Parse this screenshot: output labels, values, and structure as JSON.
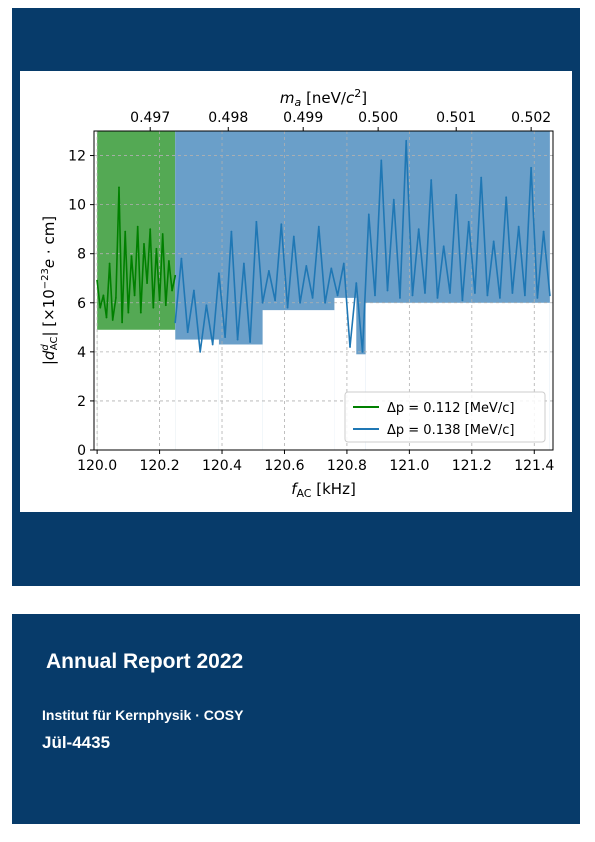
{
  "cover": {
    "title": "Annual Report 2022",
    "institute": "Institut für Kernphysik · COSY",
    "report_number": "Jül-4435"
  },
  "colors": {
    "panel": "#073b6a",
    "series_green": "#008000",
    "series_blue": "#1f77b4",
    "region_green": "#54a954",
    "region_blue": "#6a9fc9"
  },
  "chart_data": {
    "type": "line",
    "xlabel": "f_AC [kHz]",
    "ylabel": "|d^d_AC| [×10^-23 e · cm]",
    "top_axis_label": "m_a [neV/c^2]",
    "xlim": [
      119.99,
      121.46
    ],
    "ylim": [
      0,
      13
    ],
    "grid": true,
    "legend_position": "lower-right",
    "x_ticks": [
      120.0,
      120.2,
      120.4,
      120.6,
      120.8,
      121.0,
      121.2,
      121.4
    ],
    "x_tick_labels": [
      "120.0",
      "120.2",
      "120.4",
      "120.6",
      "120.8",
      "121.0",
      "121.2",
      "121.4"
    ],
    "y_ticks": [
      0,
      2,
      4,
      6,
      8,
      10,
      12
    ],
    "y_tick_labels": [
      "0",
      "2",
      "4",
      "6",
      "8",
      "10",
      "12"
    ],
    "top_ticks_x": [
      120.17,
      120.42,
      120.66,
      120.9,
      121.15,
      121.39
    ],
    "top_tick_labels": [
      "0.497",
      "0.498",
      "0.499",
      "0.500",
      "0.501",
      "0.502"
    ],
    "series": [
      {
        "name": "Δp = 0.112 [MeV/c]",
        "color": "#008000",
        "x": [
          120.0,
          120.01,
          120.02,
          120.03,
          120.04,
          120.05,
          120.06,
          120.07,
          120.08,
          120.09,
          120.1,
          120.11,
          120.12,
          120.13,
          120.14,
          120.15,
          120.16,
          120.17,
          120.18,
          120.19,
          120.2,
          120.21,
          120.22,
          120.23,
          120.24,
          120.25
        ],
        "y": [
          6.9,
          5.8,
          6.3,
          5.4,
          7.6,
          5.3,
          6.2,
          10.7,
          5.2,
          8.9,
          5.6,
          7.9,
          6.3,
          9.1,
          5.6,
          8.4,
          6.8,
          9.0,
          5.8,
          8.2,
          6.1,
          8.8,
          5.9,
          7.7,
          6.5,
          7.1
        ]
      },
      {
        "name": "Δp = 0.138 [MeV/c]",
        "color": "#1f77b4",
        "x": [
          120.25,
          120.27,
          120.29,
          120.31,
          120.33,
          120.35,
          120.37,
          120.39,
          120.41,
          120.43,
          120.45,
          120.47,
          120.49,
          120.51,
          120.53,
          120.55,
          120.57,
          120.59,
          120.61,
          120.63,
          120.65,
          120.67,
          120.69,
          120.71,
          120.73,
          120.75,
          120.77,
          120.79,
          120.81,
          120.83,
          120.85,
          120.87,
          120.89,
          120.91,
          120.93,
          120.95,
          120.97,
          120.99,
          121.01,
          121.03,
          121.05,
          121.07,
          121.09,
          121.11,
          121.13,
          121.15,
          121.17,
          121.19,
          121.21,
          121.23,
          121.25,
          121.27,
          121.29,
          121.31,
          121.33,
          121.35,
          121.37,
          121.39,
          121.41,
          121.43,
          121.45
        ],
        "y": [
          5.2,
          7.8,
          4.8,
          6.5,
          4.0,
          5.9,
          4.3,
          7.2,
          4.6,
          8.9,
          4.5,
          7.6,
          4.4,
          9.3,
          6.0,
          7.3,
          6.1,
          9.2,
          5.8,
          8.7,
          6.0,
          7.5,
          6.2,
          9.1,
          6.0,
          7.4,
          6.3,
          7.6,
          4.2,
          6.8,
          4.0,
          9.6,
          6.3,
          11.8,
          6.5,
          10.2,
          6.2,
          12.6,
          6.3,
          9.0,
          6.4,
          11.0,
          6.2,
          8.3,
          6.4,
          10.4,
          6.1,
          9.3,
          6.4,
          11.1,
          6.3,
          8.5,
          6.2,
          10.3,
          6.4,
          9.1,
          6.3,
          11.5,
          6.2,
          8.9,
          6.3
        ]
      }
    ],
    "shaded_regions": [
      {
        "x": [
          120.0,
          120.25
        ],
        "y": [
          0,
          13
        ],
        "color": "#54a954",
        "description_bind": "green"
      },
      {
        "x": [
          120.25,
          121.45
        ],
        "y": [
          0,
          13
        ],
        "color": "#6a9fc9",
        "description_bind": "blue"
      }
    ],
    "shaded_lower_bound": {
      "blue_dips": [
        {
          "x": [
            120.25,
            120.39
          ],
          "y": 4.5
        },
        {
          "x": [
            120.29,
            120.37
          ],
          "y": 3.8
        },
        {
          "x": [
            120.39,
            120.53
          ],
          "y": 4.3
        },
        {
          "x": [
            120.53,
            120.76
          ],
          "y": 5.7
        },
        {
          "x": [
            120.76,
            120.83
          ],
          "y": 6.2
        },
        {
          "x": [
            120.79,
            120.86
          ],
          "y": 3.9
        },
        {
          "x": [
            120.86,
            121.45
          ],
          "y": 6.0
        }
      ]
    }
  }
}
